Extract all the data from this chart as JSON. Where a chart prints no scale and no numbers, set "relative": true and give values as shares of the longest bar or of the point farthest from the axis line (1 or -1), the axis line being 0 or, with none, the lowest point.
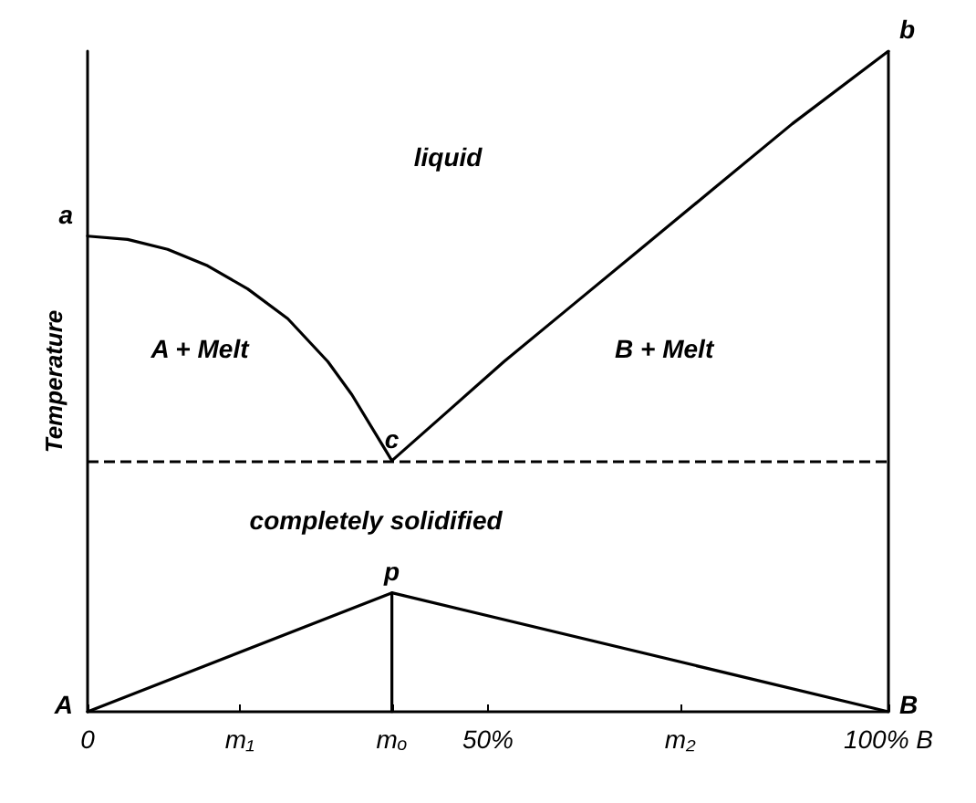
{
  "chart_data": {
    "type": "line",
    "relative": true,
    "ylabel": "Temperature",
    "xlim": [
      0,
      100
    ],
    "xticks": [
      0,
      {
        "value": 19,
        "label": "m₁"
      },
      {
        "value": 38,
        "label": "mₒ"
      },
      {
        "value": 50,
        "label": "50%"
      },
      {
        "value": 74,
        "label": "m₂"
      },
      {
        "value": 100,
        "label": "100% B"
      }
    ],
    "series": [
      {
        "color": "#000000",
        "x": [
          0,
          5,
          10,
          15,
          20,
          25,
          30,
          33,
          36,
          38
        ],
        "values": [
          0.72,
          0.715,
          0.7,
          0.675,
          0.64,
          0.595,
          0.53,
          0.48,
          0.42,
          0.38
        ]
      },
      {
        "color": "#000000",
        "x": [
          38,
          45,
          52,
          60,
          69,
          78,
          88,
          100
        ],
        "values": [
          0.38,
          0.455,
          0.53,
          0.61,
          0.7,
          0.79,
          0.89,
          1
        ]
      },
      {
        "color": "#000000",
        "x": [
          0,
          38,
          100
        ],
        "values": [
          0,
          0.18,
          0
        ]
      },
      {
        "color": "#000000",
        "x": [
          38,
          38
        ],
        "values": [
          0,
          0.18
        ]
      }
    ],
    "ref_lines": [
      {
        "axis": "y",
        "value": 0.38,
        "label": null,
        "line_style": "dashed",
        "color": "#000000"
      },
      {
        "axis": "x",
        "value": 100,
        "label": null,
        "line_style": "solid",
        "color": "#000000"
      }
    ],
    "annotations": [
      {
        "text": "a",
        "x": 0,
        "y": 0.72
      },
      {
        "text": "b",
        "x": 100,
        "y": 1
      },
      {
        "text": "c",
        "x": 38,
        "y": 0.38
      },
      {
        "text": "p",
        "x": 38,
        "y": 0.18
      },
      {
        "text": "A",
        "x": 0,
        "y": 0
      },
      {
        "text": "B",
        "x": 100,
        "y": 0
      },
      "liquid",
      "A + Melt",
      "B + Melt",
      "completely solidified"
    ],
    "grid": false,
    "marker": "none",
    "line_style": "solid"
  }
}
